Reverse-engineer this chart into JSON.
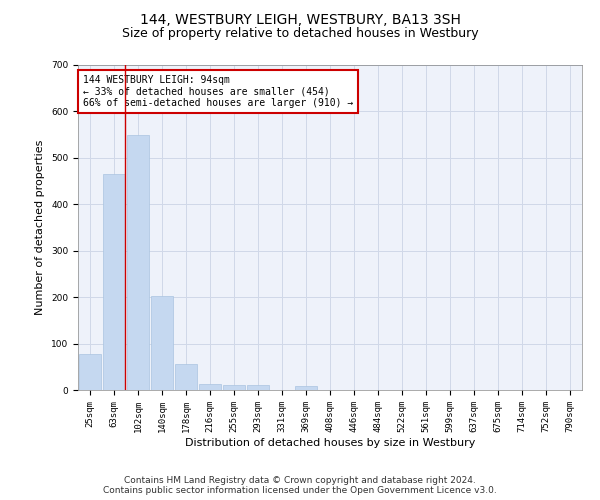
{
  "title": "144, WESTBURY LEIGH, WESTBURY, BA13 3SH",
  "subtitle": "Size of property relative to detached houses in Westbury",
  "xlabel": "Distribution of detached houses by size in Westbury",
  "ylabel": "Number of detached properties",
  "footer_line1": "Contains HM Land Registry data © Crown copyright and database right 2024.",
  "footer_line2": "Contains public sector information licensed under the Open Government Licence v3.0.",
  "bin_labels": [
    "25sqm",
    "63sqm",
    "102sqm",
    "140sqm",
    "178sqm",
    "216sqm",
    "255sqm",
    "293sqm",
    "331sqm",
    "369sqm",
    "408sqm",
    "446sqm",
    "484sqm",
    "522sqm",
    "561sqm",
    "599sqm",
    "637sqm",
    "675sqm",
    "714sqm",
    "752sqm",
    "790sqm"
  ],
  "bar_values": [
    78,
    465,
    550,
    203,
    57,
    14,
    10,
    10,
    0,
    8,
    0,
    0,
    0,
    0,
    0,
    0,
    0,
    0,
    0,
    0,
    0
  ],
  "bar_color": "#c5d8f0",
  "bar_edge_color": "#aac4e0",
  "grid_color": "#d0d8e8",
  "annotation_line1": "144 WESTBURY LEIGH: 94sqm",
  "annotation_line2": "← 33% of detached houses are smaller (454)",
  "annotation_line3": "66% of semi-detached houses are larger (910) →",
  "annotation_box_color": "#ffffff",
  "annotation_border_color": "#cc0000",
  "vline_color": "#cc0000",
  "vline_x": 1.45,
  "ylim": [
    0,
    700
  ],
  "yticks": [
    0,
    100,
    200,
    300,
    400,
    500,
    600,
    700
  ],
  "background_color": "#eef2fa",
  "title_fontsize": 10,
  "subtitle_fontsize": 9,
  "axis_label_fontsize": 8,
  "tick_fontsize": 6.5,
  "annotation_fontsize": 7,
  "footer_fontsize": 6.5
}
